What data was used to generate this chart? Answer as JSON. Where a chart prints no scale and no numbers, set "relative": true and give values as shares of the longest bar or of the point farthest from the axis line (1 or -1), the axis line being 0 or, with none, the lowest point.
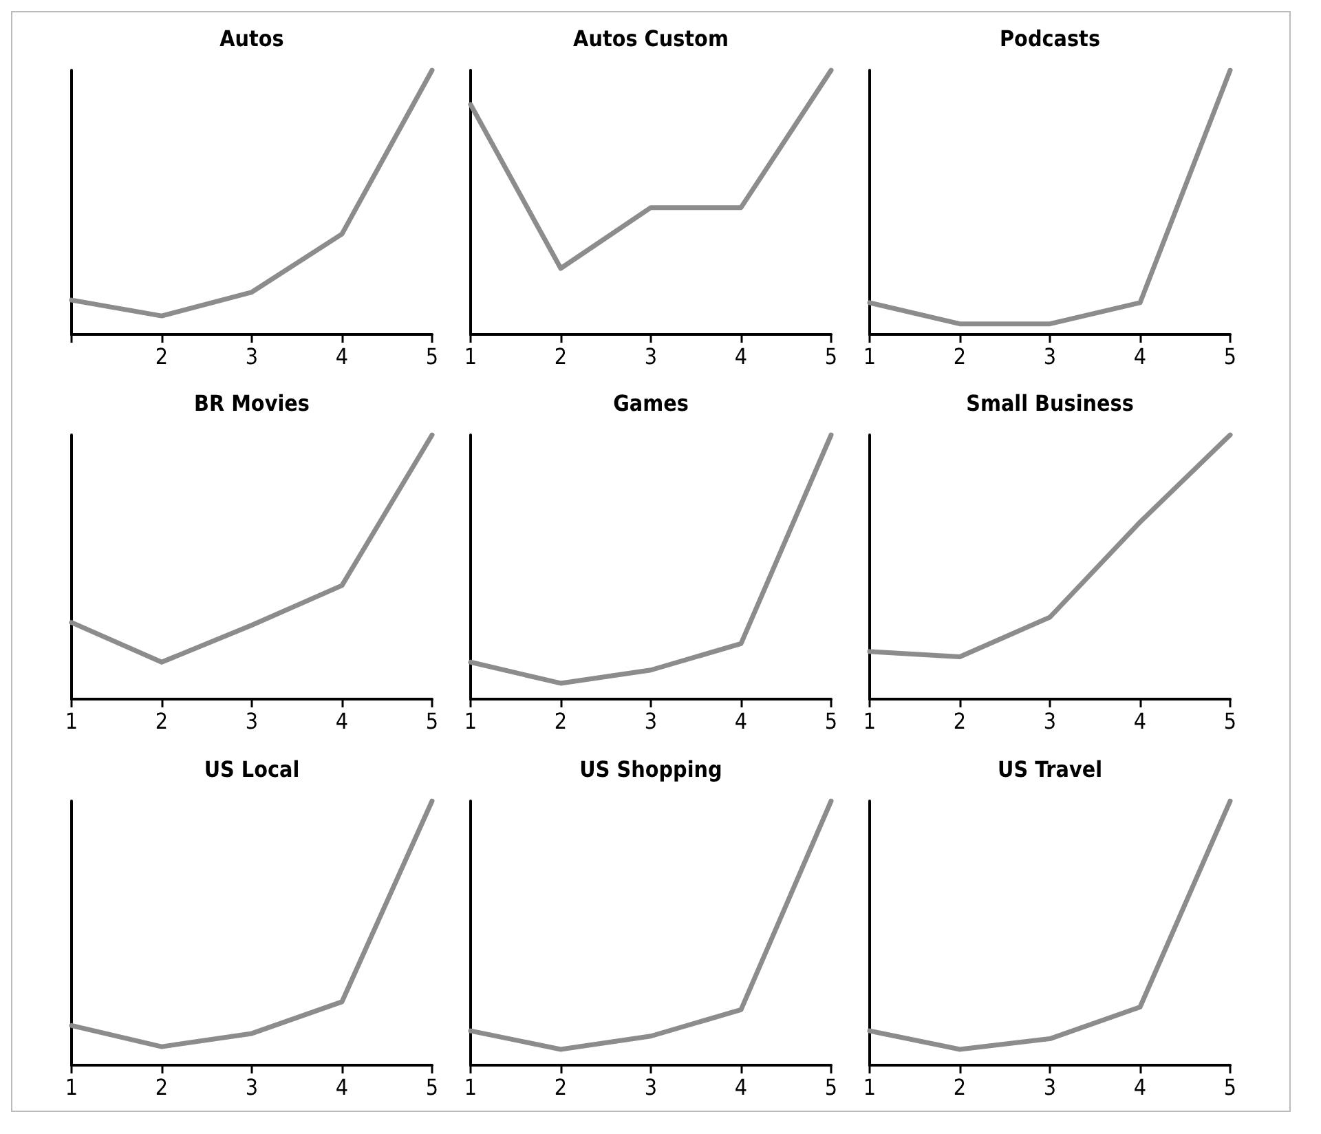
{
  "chart_data": [
    {
      "type": "line",
      "title": "Autos",
      "x": [
        1,
        2,
        3,
        4,
        5
      ],
      "xlim": [
        1,
        5
      ],
      "xticks": [
        {
          "value": 1,
          "label": null
        },
        2,
        3,
        4,
        5
      ],
      "relative": true,
      "marker": "none",
      "series": [
        {
          "color": "#8c8c8c",
          "values": [
            0.13,
            0.07,
            0.16,
            0.38,
            1
          ]
        }
      ]
    },
    {
      "type": "line",
      "title": "Autos Custom",
      "x": [
        1,
        2,
        3,
        4,
        5
      ],
      "xlim": [
        1,
        5
      ],
      "xticks": [
        1,
        2,
        3,
        4,
        5
      ],
      "relative": true,
      "marker": "none",
      "series": [
        {
          "color": "#8c8c8c",
          "values": [
            0.87,
            0.25,
            0.48,
            0.48,
            1
          ]
        }
      ]
    },
    {
      "type": "line",
      "title": "Podcasts",
      "x": [
        1,
        2,
        3,
        4,
        5
      ],
      "xlim": [
        1,
        5
      ],
      "xticks": [
        1,
        2,
        3,
        4,
        5
      ],
      "relative": true,
      "marker": "none",
      "series": [
        {
          "color": "#8c8c8c",
          "values": [
            0.12,
            0.04,
            0.04,
            0.12,
            1
          ]
        }
      ]
    },
    {
      "type": "line",
      "title": "BR Movies",
      "x": [
        1,
        2,
        3,
        4,
        5
      ],
      "xlim": [
        1,
        5
      ],
      "xticks": [
        1,
        2,
        3,
        4,
        5
      ],
      "relative": true,
      "marker": "none",
      "series": [
        {
          "color": "#8c8c8c",
          "values": [
            0.29,
            0.14,
            0.28,
            0.43,
            1
          ]
        }
      ]
    },
    {
      "type": "line",
      "title": "Games",
      "x": [
        1,
        2,
        3,
        4,
        5
      ],
      "xlim": [
        1,
        5
      ],
      "xticks": [
        1,
        2,
        3,
        4,
        5
      ],
      "relative": true,
      "marker": "none",
      "series": [
        {
          "color": "#8c8c8c",
          "values": [
            0.14,
            0.06,
            0.11,
            0.21,
            1
          ]
        }
      ]
    },
    {
      "type": "line",
      "title": "Small Business",
      "x": [
        1,
        2,
        3,
        4,
        5
      ],
      "xlim": [
        1,
        5
      ],
      "xticks": [
        1,
        2,
        3,
        4,
        5
      ],
      "relative": true,
      "marker": "none",
      "series": [
        {
          "color": "#8c8c8c",
          "values": [
            0.18,
            0.16,
            0.31,
            0.67,
            1
          ]
        }
      ]
    },
    {
      "type": "line",
      "title": "US Local",
      "x": [
        1,
        2,
        3,
        4,
        5
      ],
      "xlim": [
        1,
        5
      ],
      "xticks": [
        1,
        2,
        3,
        4,
        5
      ],
      "relative": true,
      "marker": "none",
      "series": [
        {
          "color": "#8c8c8c",
          "values": [
            0.15,
            0.07,
            0.12,
            0.24,
            1
          ]
        }
      ]
    },
    {
      "type": "line",
      "title": "US Shopping",
      "x": [
        1,
        2,
        3,
        4,
        5
      ],
      "xlim": [
        1,
        5
      ],
      "xticks": [
        1,
        2,
        3,
        4,
        5
      ],
      "relative": true,
      "marker": "none",
      "series": [
        {
          "color": "#8c8c8c",
          "values": [
            0.13,
            0.06,
            0.11,
            0.21,
            1
          ]
        }
      ]
    },
    {
      "type": "line",
      "title": "US Travel",
      "x": [
        1,
        2,
        3,
        4,
        5
      ],
      "xlim": [
        1,
        5
      ],
      "xticks": [
        1,
        2,
        3,
        4,
        5
      ],
      "relative": true,
      "marker": "none",
      "series": [
        {
          "color": "#8c8c8c",
          "values": [
            0.13,
            0.06,
            0.1,
            0.22,
            1
          ]
        }
      ]
    }
  ]
}
